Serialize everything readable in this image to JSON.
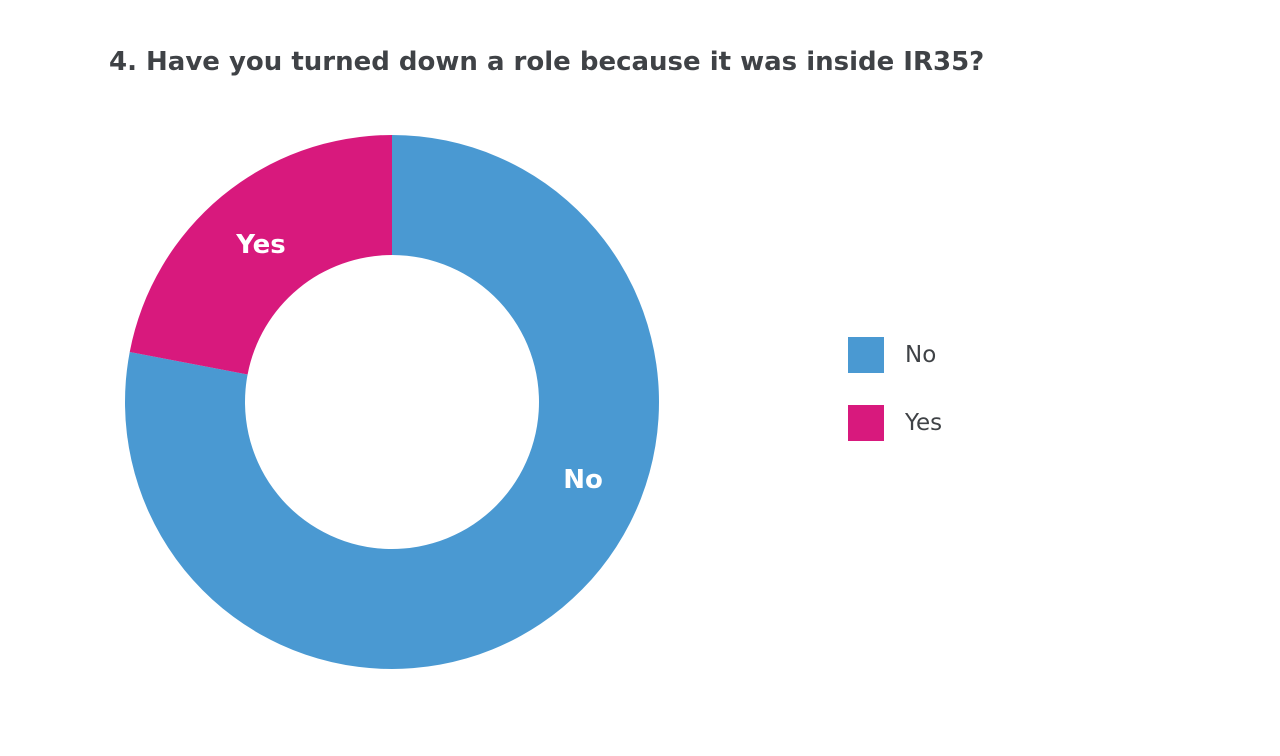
{
  "page": {
    "background_color": "#ffffff"
  },
  "chart_data": {
    "type": "pie",
    "subtype": "donut",
    "title": "4. Have you turned down a role because it was inside IR35?",
    "title_color": "#3F4246",
    "slices": [
      {
        "label": "No",
        "value": 78,
        "color": "#4A99D2"
      },
      {
        "label": "Yes",
        "value": 22,
        "color": "#D8197D"
      }
    ],
    "start_angle_deg": 0,
    "direction": "clockwise",
    "inner_radius_ratio": 0.55,
    "slice_label_color": "#FFFFFF",
    "data_value_labels_shown": false,
    "legend": {
      "position": "right",
      "text_color": "#3F4246",
      "items": [
        {
          "label": "No"
        },
        {
          "label": "Yes"
        }
      ]
    }
  }
}
